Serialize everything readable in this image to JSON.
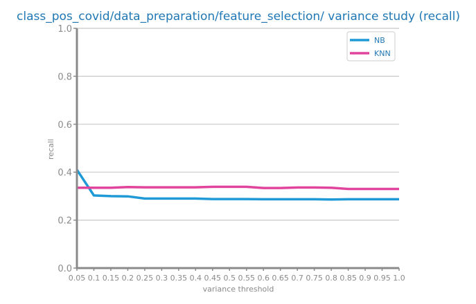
{
  "chart_data": {
    "type": "line",
    "title": "class_pos_covid/data_preparation/feature_selection/ variance study (recall)",
    "xlabel": "variance threshold",
    "ylabel": "recall",
    "x": [
      0.05,
      0.1,
      0.15,
      0.2,
      0.25,
      0.3,
      0.35,
      0.4,
      0.45,
      0.5,
      0.55,
      0.6,
      0.65,
      0.7,
      0.75,
      0.8,
      0.85,
      0.9,
      0.95,
      1.0
    ],
    "xtick_labels": [
      "0.05",
      "0.1",
      "0.15",
      "0.2",
      "0.25",
      "0.3",
      "0.35",
      "0.4",
      "0.45",
      "0.5",
      "0.55",
      "0.6",
      "0.65",
      "0.7",
      "0.75",
      "0.8",
      "0.85",
      "0.9",
      "0.95",
      "1.0"
    ],
    "ylim": [
      0.0,
      1.0
    ],
    "yticks": [
      "0.0",
      "0.2",
      "0.4",
      "0.6",
      "0.8",
      "1.0"
    ],
    "grid": "horizontal",
    "legend_position": "top-right",
    "series": [
      {
        "name": "NB",
        "color": "#1f9ad6",
        "values": [
          0.41,
          0.303,
          0.3,
          0.299,
          0.29,
          0.29,
          0.29,
          0.29,
          0.288,
          0.288,
          0.288,
          0.287,
          0.287,
          0.287,
          0.287,
          0.286,
          0.287,
          0.287,
          0.287,
          0.287
        ]
      },
      {
        "name": "KNN",
        "color": "#e0449c",
        "values": [
          0.335,
          0.335,
          0.335,
          0.338,
          0.337,
          0.337,
          0.337,
          0.337,
          0.339,
          0.339,
          0.339,
          0.334,
          0.334,
          0.336,
          0.336,
          0.335,
          0.33,
          0.33,
          0.33,
          0.33
        ]
      }
    ]
  }
}
